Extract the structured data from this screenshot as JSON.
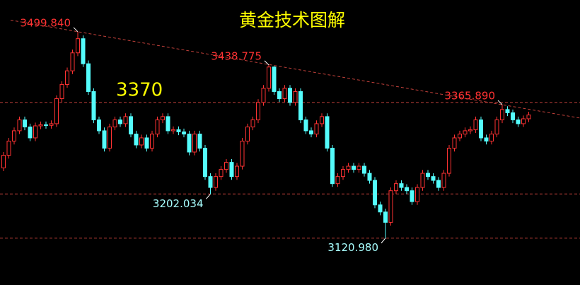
{
  "chart_data": {
    "type": "candlestick",
    "title": "黄金技术图解",
    "background": "#000000",
    "up_color": "#ff3232",
    "down_color": "#54fcfc",
    "level_color": "#c0403a",
    "title_color": "#ffff00",
    "ylim": [
      3035,
      3558
    ],
    "levels": [
      3370,
      3202.034,
      3120.98
    ],
    "open": [
      3250,
      3273,
      3299,
      3318,
      3338,
      3325,
      3305,
      3327,
      3329,
      3328,
      3331,
      3377,
      3403,
      3428,
      3461,
      3487,
      3441,
      3390,
      3338,
      3318,
      3286,
      3325,
      3338,
      3331,
      3344,
      3312,
      3292,
      3305,
      3286,
      3312,
      3338,
      3344,
      3318,
      3320,
      3316,
      3312,
      3279,
      3312,
      3286,
      3234,
      3214,
      3234,
      3247,
      3260,
      3234,
      3253,
      3299,
      3325,
      3338,
      3370,
      3396,
      3435,
      3390,
      3377,
      3396,
      3370,
      3390,
      3338,
      3318,
      3312,
      3331,
      3344,
      3286,
      3221,
      3234,
      3247,
      3253,
      3247,
      3253,
      3240,
      3227,
      3182,
      3169,
      3150,
      3208,
      3221,
      3214,
      3208,
      3188,
      3214,
      3240,
      3234,
      3227,
      3214,
      3240,
      3286,
      3305,
      3312,
      3318,
      3320,
      3338,
      3305,
      3299,
      3312,
      3338,
      3357,
      3351,
      3338,
      3331,
      3340
    ],
    "high": [
      3279,
      3305,
      3324,
      3344,
      3344,
      3331,
      3333,
      3335,
      3335,
      3337,
      3383,
      3409,
      3434,
      3467,
      3499.84,
      3493,
      3447,
      3396,
      3344,
      3324,
      3331,
      3344,
      3344,
      3350,
      3350,
      3318,
      3311,
      3311,
      3318,
      3344,
      3350,
      3350,
      3326,
      3326,
      3322,
      3318,
      3318,
      3318,
      3292,
      3240,
      3240,
      3253,
      3266,
      3266,
      3259,
      3305,
      3331,
      3344,
      3376,
      3402,
      3438.775,
      3437,
      3396,
      3402,
      3402,
      3396,
      3396,
      3344,
      3324,
      3337,
      3350,
      3350,
      3292,
      3240,
      3253,
      3259,
      3259,
      3259,
      3259,
      3246,
      3233,
      3188,
      3175,
      3214,
      3227,
      3227,
      3220,
      3214,
      3220,
      3246,
      3246,
      3240,
      3233,
      3246,
      3292,
      3311,
      3318,
      3324,
      3326,
      3344,
      3344,
      3311,
      3318,
      3344,
      3365.89,
      3363,
      3357,
      3344,
      3346,
      3353
    ],
    "low": [
      3244,
      3267,
      3293,
      3312,
      3319,
      3299,
      3299,
      3321,
      3322,
      3322,
      3325,
      3371,
      3397,
      3422,
      3455,
      3435,
      3384,
      3332,
      3312,
      3280,
      3280,
      3319,
      3325,
      3325,
      3306,
      3286,
      3286,
      3280,
      3280,
      3306,
      3332,
      3312,
      3312,
      3310,
      3306,
      3273,
      3273,
      3280,
      3228,
      3202.034,
      3208,
      3228,
      3241,
      3228,
      3228,
      3247,
      3293,
      3319,
      3332,
      3364,
      3390,
      3384,
      3371,
      3371,
      3364,
      3364,
      3332,
      3312,
      3306,
      3306,
      3325,
      3280,
      3215,
      3215,
      3228,
      3241,
      3241,
      3241,
      3234,
      3221,
      3176,
      3163,
      3120.98,
      3144,
      3202,
      3208,
      3202,
      3182,
      3182,
      3208,
      3228,
      3221,
      3208,
      3208,
      3234,
      3280,
      3299,
      3306,
      3312,
      3314,
      3299,
      3293,
      3293,
      3306,
      3332,
      3345,
      3332,
      3325,
      3325,
      3334
    ],
    "close": [
      3273,
      3299,
      3318,
      3338,
      3325,
      3305,
      3327,
      3329,
      3328,
      3331,
      3377,
      3403,
      3428,
      3461,
      3487,
      3441,
      3390,
      3338,
      3318,
      3286,
      3325,
      3338,
      3331,
      3344,
      3312,
      3292,
      3305,
      3286,
      3312,
      3338,
      3344,
      3318,
      3320,
      3316,
      3312,
      3279,
      3312,
      3286,
      3234,
      3214,
      3234,
      3247,
      3260,
      3234,
      3253,
      3299,
      3325,
      3338,
      3370,
      3396,
      3435,
      3390,
      3377,
      3396,
      3370,
      3390,
      3338,
      3318,
      3312,
      3331,
      3344,
      3286,
      3221,
      3234,
      3247,
      3253,
      3247,
      3253,
      3240,
      3227,
      3182,
      3169,
      3150,
      3208,
      3221,
      3214,
      3208,
      3188,
      3214,
      3240,
      3234,
      3227,
      3214,
      3240,
      3286,
      3305,
      3312,
      3318,
      3320,
      3338,
      3305,
      3299,
      3312,
      3338,
      3357,
      3351,
      3338,
      3331,
      3340,
      3347
    ],
    "annotations": [
      {
        "label": "3499.840",
        "value": 3499.84,
        "index": 14,
        "position": "above",
        "color": "#ff3232"
      },
      {
        "label": "3438.775",
        "value": 3438.775,
        "index": 50,
        "position": "above",
        "color": "#ff3232"
      },
      {
        "label": "3365.890",
        "value": 3365.89,
        "index": 94,
        "position": "above",
        "color": "#ff3232"
      },
      {
        "label": "3202.034",
        "value": 3202.034,
        "index": 39,
        "position": "below",
        "color": "#a8ffff"
      },
      {
        "label": "3120.980",
        "value": 3120.98,
        "index": 72,
        "position": "below",
        "color": "#a8ffff"
      }
    ]
  }
}
